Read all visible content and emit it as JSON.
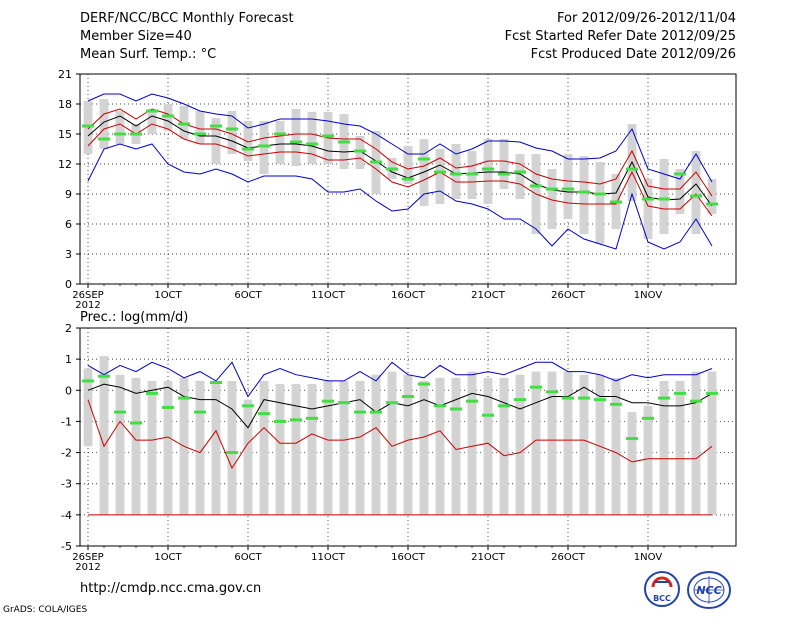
{
  "header": {
    "title": "DERF/NCC/BCC Monthly Forecast",
    "member_size": "Member Size=40",
    "variable": "Mean Surf. Temp.: °C",
    "period": "For 2012/09/26-2012/11/04",
    "fcst_started": "Fcst Started Refer Date 2012/09/25",
    "fcst_produced": "Fcst Produced Date 2012/09/26"
  },
  "footer": {
    "url": "http://cmdp.ncc.cma.gov.cn",
    "credit": "GrADS: COLA/IGES",
    "logo_bcc_text": "BCC",
    "logo_ncc_text": "NCC"
  },
  "colors": {
    "box": "#d3d3d3",
    "median": "#44dd44",
    "ensemble_mean": "#000000",
    "envelope": "#0000cc",
    "lower_curve": "#cc0000"
  },
  "chart_data": [
    {
      "type": "line",
      "title": "Mean Surf. Temp.: °C",
      "ylim": [
        0,
        21
      ],
      "yticks": [
        0,
        3,
        6,
        9,
        12,
        15,
        18,
        21
      ],
      "grid": true,
      "xtick_labels": [
        {
          "day": 1,
          "label": "26SEP",
          "sub": "2012"
        },
        {
          "day": 6,
          "label": "1OCT"
        },
        {
          "day": 11,
          "label": "6OCT"
        },
        {
          "day": 16,
          "label": "11OCT"
        },
        {
          "day": 21,
          "label": "16OCT"
        },
        {
          "day": 26,
          "label": "21OCT"
        },
        {
          "day": 31,
          "label": "26OCT"
        },
        {
          "day": 36,
          "label": "1NOV"
        }
      ],
      "x": [
        1,
        2,
        3,
        4,
        5,
        6,
        7,
        8,
        9,
        10,
        11,
        12,
        13,
        14,
        15,
        16,
        17,
        18,
        19,
        20,
        21,
        22,
        23,
        24,
        25,
        26,
        27,
        28,
        29,
        30,
        31,
        32,
        33,
        34,
        35,
        36,
        37,
        38,
        39,
        40
      ],
      "series": [
        {
          "name": "ensemble max",
          "color_key": "envelope",
          "values": [
            18.3,
            19.0,
            19.0,
            18.3,
            19.0,
            18.6,
            18.0,
            17.3,
            17.0,
            16.8,
            15.6,
            16.0,
            16.5,
            16.5,
            16.5,
            16.3,
            16.0,
            15.8,
            15.0,
            14.0,
            13.0,
            13.0,
            14.0,
            13.0,
            13.5,
            14.3,
            14.3,
            14.2,
            13.6,
            13.3,
            12.5,
            12.5,
            12.6,
            13.3,
            15.5,
            11.5,
            11.0,
            10.5,
            13.0,
            10.2
          ]
        },
        {
          "name": "upper",
          "color_key": "lower_curve",
          "values": [
            15.5,
            17.0,
            17.5,
            16.5,
            17.5,
            17.0,
            16.0,
            15.5,
            15.5,
            15.0,
            14.2,
            14.6,
            14.8,
            15.0,
            15.0,
            14.6,
            14.5,
            14.5,
            13.5,
            12.2,
            11.5,
            11.8,
            12.6,
            11.6,
            11.8,
            12.3,
            12.3,
            12.0,
            11.0,
            10.5,
            10.3,
            10.2,
            10.0,
            10.5,
            13.3,
            9.8,
            9.5,
            9.5,
            11.2,
            8.8
          ]
        },
        {
          "name": "ensemble mean",
          "color_key": "ensemble_mean",
          "values": [
            14.8,
            16.2,
            16.8,
            15.8,
            16.8,
            16.3,
            15.3,
            14.8,
            14.8,
            14.3,
            13.6,
            13.8,
            14.0,
            14.0,
            13.8,
            13.3,
            13.2,
            13.3,
            12.3,
            11.2,
            10.6,
            11.2,
            11.9,
            11.0,
            11.1,
            11.2,
            11.2,
            11.0,
            10.0,
            9.4,
            9.2,
            9.2,
            9.0,
            9.1,
            12.2,
            8.7,
            8.4,
            8.5,
            10.0,
            7.8
          ]
        },
        {
          "name": "lower",
          "color_key": "lower_curve",
          "values": [
            13.8,
            15.5,
            16.0,
            15.0,
            16.0,
            15.5,
            14.5,
            14.0,
            14.0,
            13.5,
            12.8,
            13.0,
            13.2,
            13.2,
            13.0,
            12.4,
            12.4,
            12.6,
            11.5,
            10.2,
            9.7,
            10.4,
            11.2,
            10.2,
            10.2,
            10.3,
            10.3,
            10.0,
            9.0,
            8.4,
            8.1,
            8.0,
            8.0,
            8.0,
            11.2,
            7.8,
            7.5,
            7.5,
            9.0,
            6.8
          ]
        },
        {
          "name": "ensemble min",
          "color_key": "envelope",
          "values": [
            10.3,
            13.5,
            14.0,
            13.5,
            14.0,
            12.0,
            11.2,
            11.0,
            11.5,
            11.0,
            10.2,
            10.8,
            10.8,
            10.8,
            10.5,
            9.2,
            9.2,
            9.5,
            8.3,
            7.3,
            7.5,
            9.0,
            9.3,
            8.3,
            8.0,
            7.5,
            6.5,
            6.5,
            5.5,
            3.8,
            5.5,
            4.5,
            4.0,
            3.5,
            9.0,
            4.2,
            3.5,
            4.2,
            6.5,
            3.8
          ]
        }
      ],
      "boxes": {
        "low": [
          13.0,
          13.5,
          14.0,
          14.0,
          15.0,
          15.3,
          14.5,
          14.0,
          12.0,
          13.0,
          12.3,
          11.0,
          12.0,
          11.8,
          12.0,
          12.0,
          11.5,
          11.5,
          9.0,
          10.5,
          10.0,
          7.8,
          8.0,
          8.5,
          8.5,
          8.0,
          9.5,
          8.5,
          5.0,
          5.5,
          6.5,
          5.0,
          4.0,
          5.5,
          8.3,
          4.5,
          5.0,
          7.0,
          5.0,
          7.0
        ],
        "high": [
          18.3,
          18.5,
          17.3,
          16.0,
          17.5,
          18.0,
          17.8,
          17.3,
          16.6,
          17.3,
          16.3,
          16.3,
          16.3,
          17.5,
          17.2,
          17.2,
          17.0,
          14.8,
          15.3,
          12.6,
          13.8,
          14.5,
          13.5,
          14.0,
          13.3,
          14.5,
          14.5,
          13.0,
          13.0,
          11.5,
          13.0,
          12.8,
          12.2,
          11.0,
          16.0,
          10.5,
          12.5,
          11.5,
          13.3,
          10.5
        ]
      },
      "median": [
        15.8,
        14.5,
        15.0,
        15.0,
        17.3,
        16.8,
        16.0,
        15.0,
        15.8,
        15.5,
        13.5,
        13.8,
        15.0,
        14.2,
        14.0,
        14.8,
        14.2,
        13.3,
        12.2,
        11.5,
        10.5,
        12.5,
        11.2,
        11.0,
        11.0,
        11.5,
        11.0,
        11.2,
        9.8,
        9.5,
        9.5,
        9.2,
        9.0,
        8.2,
        11.5,
        8.5,
        8.5,
        11.0,
        8.8,
        8.0
      ]
    },
    {
      "type": "line",
      "title": "Prec.: log(mm/d)",
      "ylim": [
        -5,
        2
      ],
      "yticks": [
        -5,
        -4,
        -3,
        -2,
        -1,
        0,
        1,
        2
      ],
      "grid": true,
      "xtick_labels": [
        {
          "day": 1,
          "label": "26SEP",
          "sub": "2012"
        },
        {
          "day": 6,
          "label": "1OCT"
        },
        {
          "day": 11,
          "label": "6OCT"
        },
        {
          "day": 16,
          "label": "11OCT"
        },
        {
          "day": 21,
          "label": "16OCT"
        },
        {
          "day": 26,
          "label": "21OCT"
        },
        {
          "day": 31,
          "label": "26OCT"
        },
        {
          "day": 36,
          "label": "1NOV"
        }
      ],
      "x": [
        1,
        2,
        3,
        4,
        5,
        6,
        7,
        8,
        9,
        10,
        11,
        12,
        13,
        14,
        15,
        16,
        17,
        18,
        19,
        20,
        21,
        22,
        23,
        24,
        25,
        26,
        27,
        28,
        29,
        30,
        31,
        32,
        33,
        34,
        35,
        36,
        37,
        38,
        39,
        40
      ],
      "series": [
        {
          "name": "ensemble max",
          "color_key": "envelope",
          "values": [
            0.8,
            0.5,
            0.8,
            0.6,
            0.9,
            0.7,
            0.4,
            0.6,
            0.3,
            0.9,
            -0.2,
            0.5,
            0.7,
            0.5,
            0.4,
            0.3,
            0.3,
            0.6,
            0.3,
            0.9,
            0.5,
            0.4,
            0.8,
            0.5,
            0.5,
            0.6,
            0.5,
            0.7,
            0.9,
            0.9,
            0.6,
            0.6,
            0.5,
            0.3,
            0.5,
            0.4,
            0.5,
            0.5,
            0.5,
            0.7
          ]
        },
        {
          "name": "ensemble mean",
          "color_key": "ensemble_mean",
          "values": [
            0.0,
            0.2,
            0.1,
            -0.1,
            0.0,
            0.1,
            -0.2,
            -0.3,
            -0.3,
            -0.6,
            -1.2,
            -0.3,
            -0.4,
            -0.5,
            -0.6,
            -0.5,
            -0.4,
            -0.3,
            -0.7,
            -0.4,
            -0.5,
            -0.3,
            -0.5,
            -0.3,
            -0.1,
            -0.2,
            -0.4,
            -0.6,
            -0.4,
            -0.2,
            -0.2,
            0.1,
            -0.2,
            -0.2,
            -0.4,
            -0.4,
            -0.5,
            -0.5,
            -0.4,
            -0.1
          ]
        },
        {
          "name": "ensemble min (red)",
          "color_key": "lower_curve",
          "values": [
            -0.3,
            -1.8,
            -1.0,
            -1.6,
            -1.6,
            -1.5,
            -1.8,
            -2.0,
            -1.3,
            -2.5,
            -1.7,
            -1.2,
            -1.7,
            -1.7,
            -1.4,
            -1.6,
            -1.6,
            -1.5,
            -1.2,
            -1.8,
            -1.6,
            -1.5,
            -1.3,
            -1.9,
            -1.8,
            -1.7,
            -2.1,
            -2.0,
            -1.6,
            -1.6,
            -1.6,
            -1.6,
            -1.8,
            -2.0,
            -2.3,
            -2.2,
            -2.2,
            -2.2,
            -2.2,
            -1.8
          ]
        },
        {
          "name": "floor",
          "color_key": "lower_curve",
          "values": [
            -4,
            -4,
            -4,
            -4,
            -4,
            -4,
            -4,
            -4,
            -4,
            -4,
            -4,
            -4,
            -4,
            -4,
            -4,
            -4,
            -4,
            -4,
            -4,
            -4,
            -4,
            -4,
            -4,
            -4,
            -4,
            -4,
            -4,
            -4,
            -4,
            -4,
            -4,
            -4,
            -4,
            -4,
            -4,
            -4,
            -4,
            -4,
            -4,
            -4
          ]
        }
      ],
      "boxes": {
        "low": [
          -1.8,
          -4.0,
          -4.0,
          -4.0,
          -4.0,
          -4.0,
          -4.0,
          -4.0,
          -4.0,
          -4.0,
          -4.0,
          -4.0,
          -4.0,
          -4.0,
          -4.0,
          -4.0,
          -4.0,
          -4.0,
          -4.0,
          -4.0,
          -4.0,
          -4.0,
          -4.0,
          -4.0,
          -4.0,
          -4.0,
          -4.0,
          -4.0,
          -4.0,
          -4.0,
          -4.0,
          -4.0,
          -4.0,
          -4.0,
          -4.0,
          -4.0,
          -4.0,
          -4.0,
          -4.0,
          -4.0
        ],
        "high": [
          0.7,
          1.1,
          0.5,
          0.4,
          0.3,
          0.3,
          0.4,
          0.3,
          0.2,
          0.3,
          -0.3,
          0.3,
          0.2,
          0.2,
          0.2,
          0.3,
          0.3,
          0.3,
          0.5,
          0.6,
          0.5,
          0.3,
          0.4,
          0.4,
          0.6,
          0.4,
          0.4,
          0.5,
          0.6,
          0.6,
          0.6,
          0.5,
          0.5,
          0.4,
          -0.7,
          -0.5,
          0.3,
          0.3,
          0.6,
          0.6
        ]
      },
      "median": [
        0.3,
        0.45,
        -0.7,
        -1.05,
        -0.1,
        -0.55,
        -0.25,
        -0.7,
        0.25,
        -2.0,
        -0.5,
        -0.75,
        -1.0,
        -0.95,
        -0.9,
        -0.35,
        -0.4,
        -0.7,
        -0.7,
        -0.4,
        -0.2,
        0.2,
        -0.5,
        -0.6,
        -0.35,
        -0.8,
        -0.5,
        -0.3,
        0.1,
        -0.05,
        -0.25,
        -0.25,
        -0.3,
        -0.45,
        -1.55,
        -0.9,
        -0.25,
        -0.1,
        -0.35,
        -0.1
      ]
    }
  ]
}
